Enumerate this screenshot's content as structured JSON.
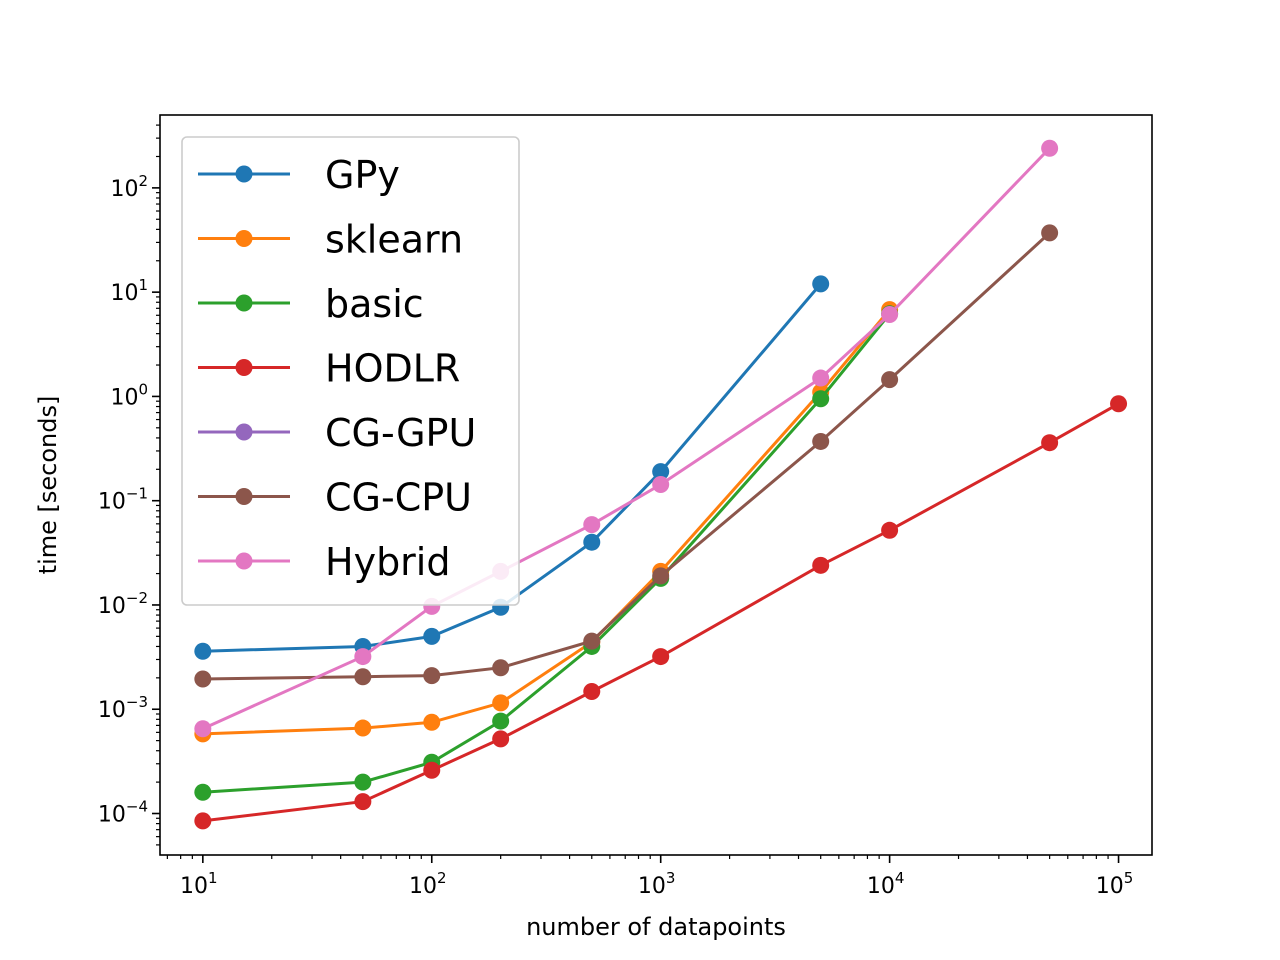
{
  "chart_data": {
    "type": "line",
    "xlabel": "number of datapoints",
    "ylabel": "time [seconds]",
    "xscale": "log",
    "yscale": "log",
    "xlim": [
      6.5,
      140000
    ],
    "ylim": [
      4e-05,
      500
    ],
    "x_ticks": [
      {
        "value": 10,
        "base": "10",
        "exp": "1"
      },
      {
        "value": 100,
        "base": "10",
        "exp": "2"
      },
      {
        "value": 1000,
        "base": "10",
        "exp": "3"
      },
      {
        "value": 10000,
        "base": "10",
        "exp": "4"
      },
      {
        "value": 100000,
        "base": "10",
        "exp": "5"
      }
    ],
    "y_ticks": [
      {
        "value": 0.0001,
        "base": "10",
        "exp": "−4"
      },
      {
        "value": 0.001,
        "base": "10",
        "exp": "−3"
      },
      {
        "value": 0.01,
        "base": "10",
        "exp": "−2"
      },
      {
        "value": 0.1,
        "base": "10",
        "exp": "−1"
      },
      {
        "value": 1,
        "base": "10",
        "exp": "0"
      },
      {
        "value": 10,
        "base": "10",
        "exp": "1"
      },
      {
        "value": 100,
        "base": "10",
        "exp": "2"
      }
    ],
    "legend_position": "top-left",
    "grid": false,
    "series": [
      {
        "name": "GPy",
        "color": "#1f77b4",
        "points": [
          [
            10,
            0.0036
          ],
          [
            50,
            0.004
          ],
          [
            100,
            0.005
          ],
          [
            200,
            0.0095
          ],
          [
            500,
            0.04
          ],
          [
            1000,
            0.19
          ],
          [
            5000,
            12
          ]
        ]
      },
      {
        "name": "sklearn",
        "color": "#ff7f0e",
        "points": [
          [
            10,
            0.00058
          ],
          [
            50,
            0.00066
          ],
          [
            100,
            0.00075
          ],
          [
            200,
            0.00115
          ],
          [
            500,
            0.0044
          ],
          [
            1000,
            0.021
          ],
          [
            5000,
            1.1
          ],
          [
            10000,
            6.8
          ]
        ]
      },
      {
        "name": "basic",
        "color": "#2ca02c",
        "points": [
          [
            10,
            0.00016
          ],
          [
            50,
            0.0002
          ],
          [
            100,
            0.00031
          ],
          [
            200,
            0.00077
          ],
          [
            500,
            0.004
          ],
          [
            1000,
            0.018
          ],
          [
            5000,
            0.95
          ],
          [
            10000,
            6.2
          ]
        ]
      },
      {
        "name": "HODLR",
        "color": "#d62728",
        "points": [
          [
            10,
            8.5e-05
          ],
          [
            50,
            0.00013
          ],
          [
            100,
            0.00026
          ],
          [
            200,
            0.00052
          ],
          [
            500,
            0.00148
          ],
          [
            1000,
            0.0032
          ],
          [
            5000,
            0.024
          ],
          [
            10000,
            0.052
          ],
          [
            50000,
            0.36
          ],
          [
            100000,
            0.85
          ]
        ]
      },
      {
        "name": "CG-GPU",
        "color": "#9467bd",
        "points": []
      },
      {
        "name": "CG-CPU",
        "color": "#8c564b",
        "points": [
          [
            10,
            0.00195
          ],
          [
            50,
            0.00205
          ],
          [
            100,
            0.0021
          ],
          [
            200,
            0.0025
          ],
          [
            500,
            0.0045
          ],
          [
            1000,
            0.019
          ],
          [
            5000,
            0.37
          ],
          [
            10000,
            1.45
          ],
          [
            50000,
            37
          ]
        ]
      },
      {
        "name": "Hybrid",
        "color": "#e377c2",
        "points": [
          [
            10,
            0.00065
          ],
          [
            50,
            0.0032
          ],
          [
            100,
            0.0097
          ],
          [
            200,
            0.021
          ],
          [
            500,
            0.059
          ],
          [
            1000,
            0.143
          ],
          [
            5000,
            1.5
          ],
          [
            10000,
            6.1
          ],
          [
            50000,
            240
          ]
        ]
      }
    ]
  }
}
